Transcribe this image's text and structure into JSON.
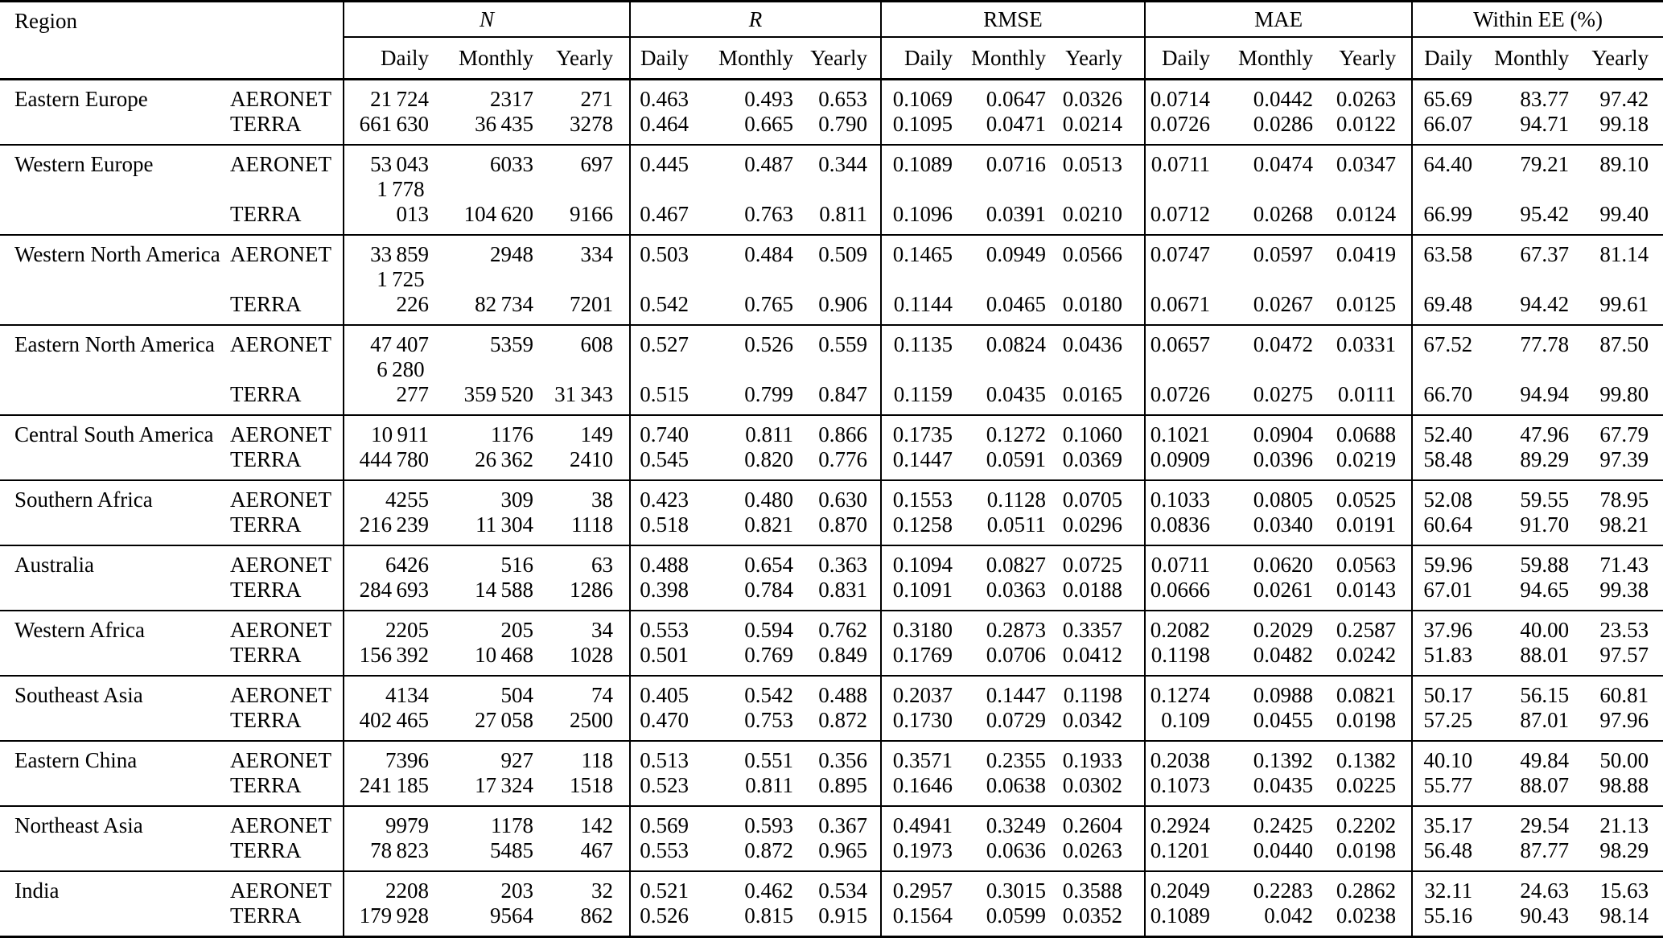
{
  "table": {
    "region_header": "Region",
    "groups": [
      {
        "label": "N"
      },
      {
        "label": "R"
      },
      {
        "label": "RMSE"
      },
      {
        "label": "MAE"
      },
      {
        "label": "Within EE (%)"
      }
    ],
    "sub_headers": [
      "Daily",
      "Monthly",
      "Yearly"
    ],
    "rows": [
      {
        "region": "Eastern Europe",
        "sources": [
          {
            "name": "AERONET",
            "values": [
              "21 724",
              "2317",
              "271",
              "0.463",
              "0.493",
              "0.653",
              "0.1069",
              "0.0647",
              "0.0326",
              "0.0714",
              "0.0442",
              "0.0263",
              "65.69",
              "83.77",
              "97.42"
            ]
          },
          {
            "name": "TERRA",
            "values": [
              "661 630",
              "36 435",
              "3278",
              "0.464",
              "0.665",
              "0.790",
              "0.1095",
              "0.0471",
              "0.0214",
              "0.0726",
              "0.0286",
              "0.0122",
              "66.07",
              "94.71",
              "99.18"
            ]
          }
        ]
      },
      {
        "region": "Western Europe",
        "sources": [
          {
            "name": "AERONET",
            "values": [
              "53 043",
              "6033",
              "697",
              "0.445",
              "0.487",
              "0.344",
              "0.1089",
              "0.0716",
              "0.0513",
              "0.0711",
              "0.0474",
              "0.0347",
              "64.40",
              "79.21",
              "89.10"
            ]
          },
          {
            "name": "TERRA",
            "values": [
              "1 778 013",
              "104 620",
              "9166",
              "0.467",
              "0.763",
              "0.811",
              "0.1096",
              "0.0391",
              "0.0210",
              "0.0712",
              "0.0268",
              "0.0124",
              "66.99",
              "95.42",
              "99.40"
            ]
          }
        ]
      },
      {
        "region": "Western North America",
        "sources": [
          {
            "name": "AERONET",
            "values": [
              "33 859",
              "2948",
              "334",
              "0.503",
              "0.484",
              "0.509",
              "0.1465",
              "0.0949",
              "0.0566",
              "0.0747",
              "0.0597",
              "0.0419",
              "63.58",
              "67.37",
              "81.14"
            ]
          },
          {
            "name": "TERRA",
            "values": [
              "1 725 226",
              "82 734",
              "7201",
              "0.542",
              "0.765",
              "0.906",
              "0.1144",
              "0.0465",
              "0.0180",
              "0.0671",
              "0.0267",
              "0.0125",
              "69.48",
              "94.42",
              "99.61"
            ]
          }
        ]
      },
      {
        "region": "Eastern North America",
        "sources": [
          {
            "name": "AERONET",
            "values": [
              "47 407",
              "5359",
              "608",
              "0.527",
              "0.526",
              "0.559",
              "0.1135",
              "0.0824",
              "0.0436",
              "0.0657",
              "0.0472",
              "0.0331",
              "67.52",
              "77.78",
              "87.50"
            ]
          },
          {
            "name": "TERRA",
            "values": [
              "6 280 277",
              "359 520",
              "31 343",
              "0.515",
              "0.799",
              "0.847",
              "0.1159",
              "0.0435",
              "0.0165",
              "0.0726",
              "0.0275",
              "0.0111",
              "66.70",
              "94.94",
              "99.80"
            ]
          }
        ]
      },
      {
        "region": "Central South America",
        "sources": [
          {
            "name": "AERONET",
            "values": [
              "10 911",
              "1176",
              "149",
              "0.740",
              "0.811",
              "0.866",
              "0.1735",
              "0.1272",
              "0.1060",
              "0.1021",
              "0.0904",
              "0.0688",
              "52.40",
              "47.96",
              "67.79"
            ]
          },
          {
            "name": "TERRA",
            "values": [
              "444 780",
              "26 362",
              "2410",
              "0.545",
              "0.820",
              "0.776",
              "0.1447",
              "0.0591",
              "0.0369",
              "0.0909",
              "0.0396",
              "0.0219",
              "58.48",
              "89.29",
              "97.39"
            ]
          }
        ]
      },
      {
        "region": "Southern Africa",
        "sources": [
          {
            "name": "AERONET",
            "values": [
              "4255",
              "309",
              "38",
              "0.423",
              "0.480",
              "0.630",
              "0.1553",
              "0.1128",
              "0.0705",
              "0.1033",
              "0.0805",
              "0.0525",
              "52.08",
              "59.55",
              "78.95"
            ]
          },
          {
            "name": "TERRA",
            "values": [
              "216 239",
              "11 304",
              "1118",
              "0.518",
              "0.821",
              "0.870",
              "0.1258",
              "0.0511",
              "0.0296",
              "0.0836",
              "0.0340",
              "0.0191",
              "60.64",
              "91.70",
              "98.21"
            ]
          }
        ]
      },
      {
        "region": "Australia",
        "sources": [
          {
            "name": "AERONET",
            "values": [
              "6426",
              "516",
              "63",
              "0.488",
              "0.654",
              "0.363",
              "0.1094",
              "0.0827",
              "0.0725",
              "0.0711",
              "0.0620",
              "0.0563",
              "59.96",
              "59.88",
              "71.43"
            ]
          },
          {
            "name": "TERRA",
            "values": [
              "284 693",
              "14 588",
              "1286",
              "0.398",
              "0.784",
              "0.831",
              "0.1091",
              "0.0363",
              "0.0188",
              "0.0666",
              "0.0261",
              "0.0143",
              "67.01",
              "94.65",
              "99.38"
            ]
          }
        ]
      },
      {
        "region": "Western Africa",
        "sources": [
          {
            "name": "AERONET",
            "values": [
              "2205",
              "205",
              "34",
              "0.553",
              "0.594",
              "0.762",
              "0.3180",
              "0.2873",
              "0.3357",
              "0.2082",
              "0.2029",
              "0.2587",
              "37.96",
              "40.00",
              "23.53"
            ]
          },
          {
            "name": "TERRA",
            "values": [
              "156 392",
              "10 468",
              "1028",
              "0.501",
              "0.769",
              "0.849",
              "0.1769",
              "0.0706",
              "0.0412",
              "0.1198",
              "0.0482",
              "0.0242",
              "51.83",
              "88.01",
              "97.57"
            ]
          }
        ]
      },
      {
        "region": "Southeast Asia",
        "sources": [
          {
            "name": "AERONET",
            "values": [
              "4134",
              "504",
              "74",
              "0.405",
              "0.542",
              "0.488",
              "0.2037",
              "0.1447",
              "0.1198",
              "0.1274",
              "0.0988",
              "0.0821",
              "50.17",
              "56.15",
              "60.81"
            ]
          },
          {
            "name": "TERRA",
            "values": [
              "402 465",
              "27 058",
              "2500",
              "0.470",
              "0.753",
              "0.872",
              "0.1730",
              "0.0729",
              "0.0342",
              "0.109",
              "0.0455",
              "0.0198",
              "57.25",
              "87.01",
              "97.96"
            ]
          }
        ]
      },
      {
        "region": "Eastern China",
        "sources": [
          {
            "name": "AERONET",
            "values": [
              "7396",
              "927",
              "118",
              "0.513",
              "0.551",
              "0.356",
              "0.3571",
              "0.2355",
              "0.1933",
              "0.2038",
              "0.1392",
              "0.1382",
              "40.10",
              "49.84",
              "50.00"
            ]
          },
          {
            "name": "TERRA",
            "values": [
              "241 185",
              "17 324",
              "1518",
              "0.523",
              "0.811",
              "0.895",
              "0.1646",
              "0.0638",
              "0.0302",
              "0.1073",
              "0.0435",
              "0.0225",
              "55.77",
              "88.07",
              "98.88"
            ]
          }
        ]
      },
      {
        "region": "Northeast Asia",
        "sources": [
          {
            "name": "AERONET",
            "values": [
              "9979",
              "1178",
              "142",
              "0.569",
              "0.593",
              "0.367",
              "0.4941",
              "0.3249",
              "0.2604",
              "0.2924",
              "0.2425",
              "0.2202",
              "35.17",
              "29.54",
              "21.13"
            ]
          },
          {
            "name": "TERRA",
            "values": [
              "78 823",
              "5485",
              "467",
              "0.553",
              "0.872",
              "0.965",
              "0.1973",
              "0.0636",
              "0.0263",
              "0.1201",
              "0.0440",
              "0.0198",
              "56.48",
              "87.77",
              "98.29"
            ]
          }
        ]
      },
      {
        "region": "India",
        "sources": [
          {
            "name": "AERONET",
            "values": [
              "2208",
              "203",
              "32",
              "0.521",
              "0.462",
              "0.534",
              "0.2957",
              "0.3015",
              "0.3588",
              "0.2049",
              "0.2283",
              "0.2862",
              "32.11",
              "24.63",
              "15.63"
            ]
          },
          {
            "name": "TERRA",
            "values": [
              "179 928",
              "9564",
              "862",
              "0.526",
              "0.815",
              "0.915",
              "0.1564",
              "0.0599",
              "0.0352",
              "0.1089",
              "0.042",
              "0.0238",
              "55.16",
              "90.43",
              "98.14"
            ]
          }
        ]
      }
    ]
  }
}
